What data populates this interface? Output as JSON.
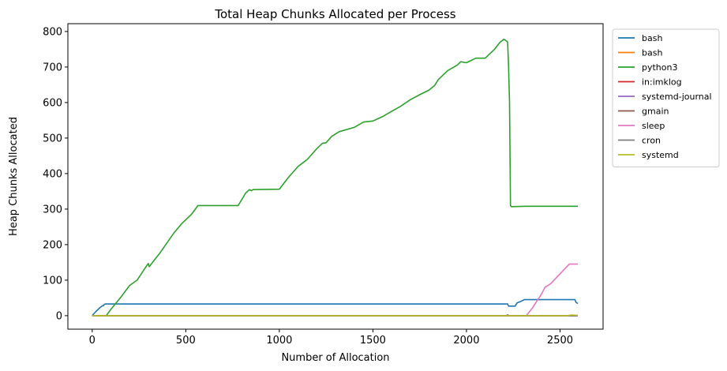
{
  "chart_data": {
    "type": "line",
    "title": "Total Heap Chunks Allocated per Process",
    "xlabel": "Number of Allocation",
    "ylabel": "Heap Chunks Allocated",
    "xlim": [
      -130,
      2730
    ],
    "ylim": [
      -38,
      822
    ],
    "xticks": [
      0,
      500,
      1000,
      1500,
      2000,
      2500
    ],
    "yticks": [
      0,
      100,
      200,
      300,
      400,
      500,
      600,
      700,
      800
    ],
    "grid": false,
    "legend_position": "outside-top-right",
    "series": [
      {
        "name": "bash",
        "color": "#1f77b4",
        "points": [
          [
            0,
            0
          ],
          [
            20,
            12
          ],
          [
            40,
            22
          ],
          [
            55,
            28
          ],
          [
            60,
            28
          ],
          [
            65,
            32
          ],
          [
            70,
            33
          ],
          [
            2220,
            33
          ],
          [
            2225,
            27
          ],
          [
            2260,
            27
          ],
          [
            2270,
            36
          ],
          [
            2290,
            40
          ],
          [
            2300,
            43
          ],
          [
            2310,
            45
          ],
          [
            2340,
            45
          ],
          [
            2580,
            45
          ],
          [
            2585,
            38
          ],
          [
            2595,
            34
          ]
        ]
      },
      {
        "name": "bash",
        "color": "#ff7f0e",
        "points": [
          [
            0,
            0
          ],
          [
            2595,
            0
          ]
        ]
      },
      {
        "name": "python3",
        "color": "#2ca02c",
        "points": [
          [
            75,
            0
          ],
          [
            100,
            18
          ],
          [
            150,
            50
          ],
          [
            200,
            85
          ],
          [
            240,
            100
          ],
          [
            290,
            140
          ],
          [
            300,
            147
          ],
          [
            305,
            138
          ],
          [
            330,
            155
          ],
          [
            360,
            175
          ],
          [
            400,
            205
          ],
          [
            440,
            235
          ],
          [
            480,
            260
          ],
          [
            530,
            285
          ],
          [
            565,
            310
          ],
          [
            620,
            310
          ],
          [
            780,
            310
          ],
          [
            820,
            345
          ],
          [
            840,
            355
          ],
          [
            850,
            352
          ],
          [
            860,
            355
          ],
          [
            1000,
            356
          ],
          [
            1010,
            363
          ],
          [
            1050,
            390
          ],
          [
            1100,
            420
          ],
          [
            1150,
            440
          ],
          [
            1200,
            470
          ],
          [
            1230,
            485
          ],
          [
            1250,
            487
          ],
          [
            1280,
            505
          ],
          [
            1320,
            518
          ],
          [
            1400,
            530
          ],
          [
            1450,
            545
          ],
          [
            1500,
            548
          ],
          [
            1550,
            560
          ],
          [
            1600,
            575
          ],
          [
            1650,
            590
          ],
          [
            1700,
            608
          ],
          [
            1750,
            622
          ],
          [
            1800,
            635
          ],
          [
            1830,
            648
          ],
          [
            1850,
            665
          ],
          [
            1870,
            675
          ],
          [
            1900,
            690
          ],
          [
            1950,
            705
          ],
          [
            1970,
            715
          ],
          [
            2000,
            712
          ],
          [
            2050,
            725
          ],
          [
            2100,
            725
          ],
          [
            2150,
            750
          ],
          [
            2180,
            770
          ],
          [
            2200,
            778
          ],
          [
            2210,
            775
          ],
          [
            2220,
            770
          ],
          [
            2225,
            700
          ],
          [
            2230,
            600
          ],
          [
            2235,
            310
          ],
          [
            2240,
            307
          ],
          [
            2320,
            308
          ],
          [
            2400,
            308
          ],
          [
            2500,
            308
          ],
          [
            2595,
            308
          ]
        ]
      },
      {
        "name": "in:imklog",
        "color": "#d62728",
        "points": [
          [
            0,
            0
          ],
          [
            2595,
            0
          ]
        ]
      },
      {
        "name": "systemd-journal",
        "color": "#9467bd",
        "points": [
          [
            0,
            0
          ],
          [
            2215,
            0
          ],
          [
            2220,
            3
          ],
          [
            2225,
            0
          ],
          [
            2595,
            0
          ]
        ]
      },
      {
        "name": "gmain",
        "color": "#8c564b",
        "points": [
          [
            0,
            0
          ],
          [
            2595,
            0
          ]
        ]
      },
      {
        "name": "sleep",
        "color": "#e377c2",
        "points": [
          [
            2320,
            0
          ],
          [
            2350,
            20
          ],
          [
            2400,
            60
          ],
          [
            2420,
            80
          ],
          [
            2450,
            90
          ],
          [
            2500,
            118
          ],
          [
            2550,
            145
          ],
          [
            2595,
            145
          ]
        ]
      },
      {
        "name": "cron",
        "color": "#7f7f7f",
        "points": [
          [
            0,
            0
          ],
          [
            2595,
            0
          ]
        ]
      },
      {
        "name": "systemd",
        "color": "#bcbd22",
        "points": [
          [
            0,
            0
          ],
          [
            2540,
            0
          ],
          [
            2560,
            2
          ],
          [
            2595,
            1
          ]
        ]
      }
    ]
  }
}
